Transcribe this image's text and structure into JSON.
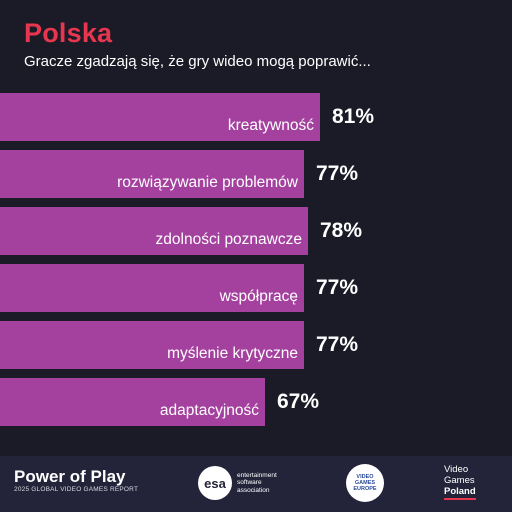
{
  "chart_data": {
    "type": "bar",
    "orientation": "horizontal",
    "title": "Polska",
    "subtitle": "Gracze zgadzają się, że gry wideo mogą poprawić...",
    "categories": [
      "kreatywność",
      "rozwiązywanie problemów",
      "zdolności poznawcze",
      "współpracę",
      "myślenie krytyczne",
      "adaptacyjność"
    ],
    "values": [
      81,
      77,
      78,
      77,
      77,
      67
    ],
    "value_labels": [
      "81%",
      "77%",
      "78%",
      "77%",
      "77%",
      "67%"
    ],
    "unit": "%",
    "bar_color": "#a4419f",
    "xlim": [
      0,
      100
    ],
    "grid": false
  },
  "colors": {
    "background": "#1b1b27",
    "title": "#e8364f",
    "footer": "#23243a"
  },
  "footer": {
    "brand_title": "Power of Play",
    "brand_sub": "2025 GLOBAL VIDEO GAMES REPORT",
    "esa_logo": "esa",
    "esa_line1": "entertainment",
    "esa_line2": "software",
    "esa_line3": "association",
    "vge_line1": "VIDEO",
    "vge_line2": "GAMES",
    "vge_line3": "EUROPE",
    "vgp_line1": "Video",
    "vgp_line2": "Games",
    "vgp_line3": "Poland"
  }
}
